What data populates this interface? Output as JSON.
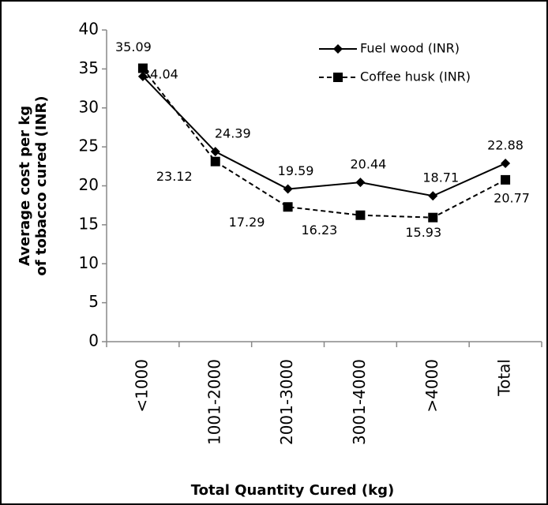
{
  "chart_data": {
    "type": "line",
    "categories": [
      "<1000",
      "1001-2000",
      "2001-3000",
      "3001-4000",
      ">4000",
      "Total"
    ],
    "series": [
      {
        "name": "Fuel wood (INR)",
        "color": "#000000",
        "marker": "diamond",
        "dash": "solid",
        "values": [
          34.04,
          24.39,
          19.59,
          20.44,
          18.71,
          22.88
        ]
      },
      {
        "name": "Coffee husk (INR)",
        "color": "#000000",
        "marker": "square",
        "dash": "dashed",
        "values": [
          35.09,
          23.12,
          17.29,
          16.23,
          15.93,
          20.77
        ]
      }
    ],
    "ylim": [
      0,
      40
    ],
    "yticks": [
      0,
      5,
      10,
      15,
      20,
      25,
      30,
      35,
      40
    ],
    "x_label": "Total Quantity Cured (kg)",
    "y_label": [
      "Average cost per kg",
      "of tobacco cured (INR)"
    ],
    "grid": false,
    "legend": "top-right"
  }
}
